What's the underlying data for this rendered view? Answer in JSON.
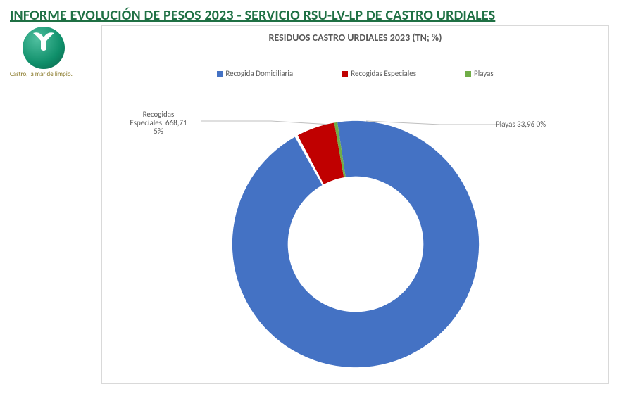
{
  "page_title": "INFORME EVOLUCIÓN DE PESOS  2023 - SERVICIO RSU-LV-LP DE CASTRO URDIALES",
  "logo_caption": "Castro, la mar de limpio.",
  "chart": {
    "type": "donut",
    "title": "RESIDUOS CASTRO URDIALES 2023 (TN; %)",
    "title_fontsize": 14,
    "title_color": "#595959",
    "background_color": "#ffffff",
    "plot_border_color": "#d9d9d9",
    "inner_radius_pct": 55,
    "start_angle_deg": 350,
    "explosion_gap_deg": 3,
    "series": [
      {
        "name": "Recogida Domiciliaria",
        "value_tn": 12947.11,
        "percent": 95,
        "color": "#4472c4"
      },
      {
        "name": "Recogidas Especiales",
        "value_tn": 668.71,
        "percent": 5,
        "color": "#c00000"
      },
      {
        "name": "Playas",
        "value_tn": 33.96,
        "percent": 0,
        "color": "#70ad47"
      }
    ],
    "callouts": [
      {
        "text_lines": [
          "Recogidas",
          "Especiales  668,71",
          "5%"
        ],
        "side": "left"
      },
      {
        "text_lines": [
          "Playas 33,96 0%"
        ],
        "side": "right"
      }
    ],
    "legend": {
      "items": [
        "Recogida Domiciliaria",
        "Recogidas Especiales",
        "Playas"
      ],
      "fontsize": 11,
      "marker_size": 8
    },
    "leader_line_color": "#bfbfbf"
  }
}
